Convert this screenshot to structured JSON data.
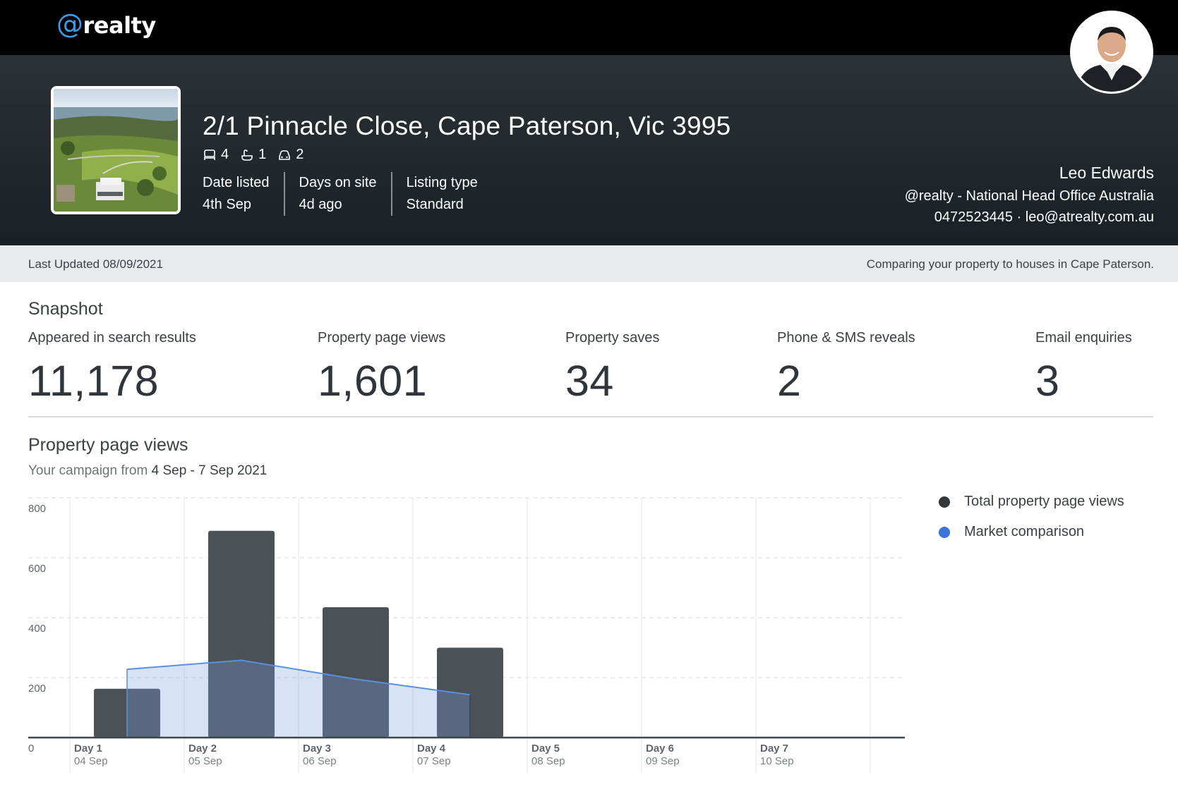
{
  "brand": {
    "at": "@",
    "name": "realty",
    "accent": "#3c9be8"
  },
  "listing": {
    "address": "2/1 Pinnacle Close, Cape Paterson, Vic 3995",
    "bedrooms": "4",
    "bathrooms": "1",
    "parking": "2",
    "meta": [
      {
        "label": "Date listed",
        "value": "4th Sep"
      },
      {
        "label": "Days on site",
        "value": "4d ago"
      },
      {
        "label": "Listing type",
        "value": "Standard"
      }
    ]
  },
  "agent": {
    "name": "Leo Edwards",
    "office": "@realty - National Head Office Australia",
    "contact": "0472523445 · leo@atrealty.com.au"
  },
  "status": {
    "last_updated": "Last Updated 08/09/2021",
    "comparison_note": "Comparing your property to houses in Cape Paterson."
  },
  "snapshot": {
    "title": "Snapshot",
    "stats": [
      {
        "label": "Appeared in search results",
        "value": "11,178"
      },
      {
        "label": "Property page views",
        "value": "1,601"
      },
      {
        "label": "Property saves",
        "value": "34"
      },
      {
        "label": "Phone & SMS reveals",
        "value": "2"
      },
      {
        "label": "Email enquiries",
        "value": "3"
      }
    ]
  },
  "page_views": {
    "title": "Property page views",
    "subtitle_prefix": "Your campaign from",
    "subtitle_dates": "4 Sep - 7 Sep 2021"
  },
  "chart_data": {
    "type": "bar",
    "categories": [
      "Day 1",
      "Day 2",
      "Day 3",
      "Day 4",
      "Day 5",
      "Day 6",
      "Day 7"
    ],
    "category_dates": [
      "04 Sep",
      "05 Sep",
      "06 Sep",
      "07 Sep",
      "08 Sep",
      "09 Sep",
      "10 Sep"
    ],
    "series": [
      {
        "name": "Total property page views",
        "kind": "bar",
        "color": "#4b5157",
        "values": [
          163,
          690,
          435,
          300,
          null,
          null,
          null
        ]
      },
      {
        "name": "Market comparison",
        "kind": "area",
        "color": "#5b8fe0",
        "values": [
          228,
          258,
          195,
          143,
          null,
          null,
          null
        ]
      }
    ],
    "ylim": [
      0,
      800
    ],
    "yticks": [
      0,
      200,
      400,
      600,
      800
    ],
    "grid": true,
    "legend": "right"
  }
}
